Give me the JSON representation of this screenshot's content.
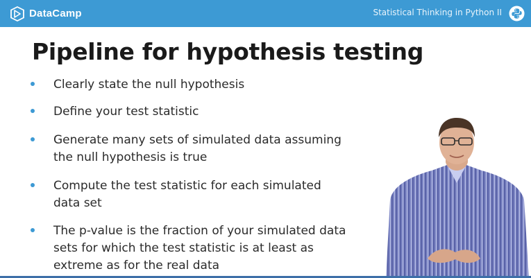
{
  "header": {
    "brand_name": "DataCamp",
    "course_title": "Statistical Thinking in Python II",
    "accent_color": "#3d9ad4"
  },
  "slide": {
    "title": "Pipeline for hypothesis testing",
    "bullets": [
      {
        "text": "Clearly state the null hypothesis"
      },
      {
        "text": "Define your test statistic"
      },
      {
        "text": "Generate many sets of simulated data assuming the null hypothesis is true"
      },
      {
        "text": "Compute the test statistic for each simulated data set"
      },
      {
        "text": "The p-value is the fraction of your simulated data sets for which the test statistic is at least as extreme as for the real data"
      }
    ]
  },
  "icons": {
    "brand": "datacamp-logo-icon",
    "course": "python-logo-icon",
    "bullet": "bullet-dot-icon"
  }
}
